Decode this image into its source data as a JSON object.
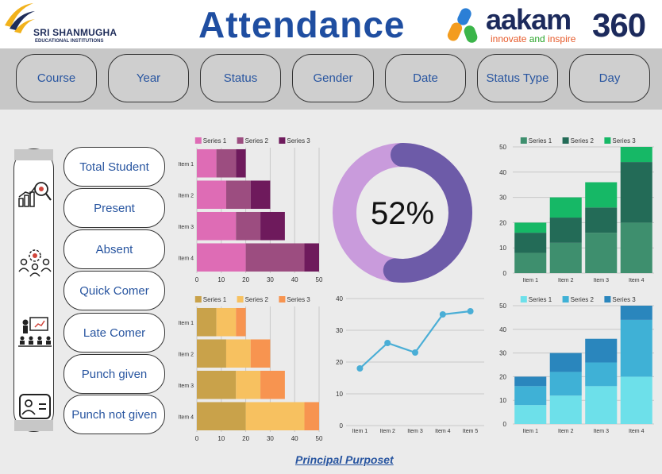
{
  "header": {
    "left_logo": {
      "name": "SRI SHANMUGHA",
      "sub": "EDUCATIONAL INSTITUTIONS"
    },
    "title": "Attendance",
    "right_logo": {
      "brand": "aakam",
      "brand_num": "360",
      "tagline_a": "innovate ",
      "tagline_b": "and",
      "tagline_c": " inspire"
    }
  },
  "filters": [
    "Course",
    "Year",
    "Status",
    "Gender",
    "Date",
    "Status Type",
    "Day"
  ],
  "side_icons": [
    "analytics-icon",
    "team-settings-icon",
    "presentation-icon",
    "id-card-icon"
  ],
  "kpis": [
    "Total Student",
    "Present",
    "Absent",
    "Quick Comer",
    "Late Comer",
    "Punch given",
    "Punch not given"
  ],
  "footer": "Principal Purposet",
  "colors": {
    "title": "#1f4ea1",
    "pill_text": "#2855a0",
    "donut_filled": "#6d5ba8",
    "donut_rest": "#c99bdc"
  },
  "chart_data": [
    {
      "type": "bar",
      "orientation": "horizontal",
      "stacked": true,
      "categories": [
        "Item 1",
        "Item 2",
        "Item 3",
        "Item 4"
      ],
      "series": [
        {
          "name": "Series 1",
          "color": "#de6cb5",
          "values": [
            8,
            12,
            16,
            20
          ]
        },
        {
          "name": "Series 2",
          "color": "#9c4d80",
          "values": [
            8,
            10,
            10,
            24
          ]
        },
        {
          "name": "Series 3",
          "color": "#6e1a5c",
          "values": [
            4,
            8,
            10,
            6
          ]
        }
      ],
      "xlim": [
        0,
        50
      ],
      "xticks": [
        "0",
        "10",
        "20",
        "30",
        "40",
        "50"
      ],
      "legend": "top"
    },
    {
      "type": "pie",
      "donut": true,
      "value": 52,
      "label": "52%"
    },
    {
      "type": "bar",
      "stacked": true,
      "categories": [
        "Item 1",
        "Item 2",
        "Item 3",
        "Item 4"
      ],
      "series": [
        {
          "name": "Series 1",
          "color": "#3e8f6e",
          "values": [
            8,
            12,
            16,
            20
          ]
        },
        {
          "name": "Series 2",
          "color": "#236b57",
          "values": [
            8,
            10,
            10,
            24
          ]
        },
        {
          "name": "Series 3",
          "color": "#16b866",
          "values": [
            4,
            8,
            10,
            6
          ]
        }
      ],
      "ylim": [
        0,
        50
      ],
      "yticks": [
        "0",
        "10",
        "20",
        "30",
        "40",
        "50"
      ],
      "legend": "top"
    },
    {
      "type": "bar",
      "orientation": "horizontal",
      "stacked": true,
      "categories": [
        "Item 1",
        "Item 2",
        "Item 3",
        "Item 4"
      ],
      "series": [
        {
          "name": "Series 1",
          "color": "#c9a24a",
          "values": [
            8,
            12,
            16,
            20
          ]
        },
        {
          "name": "Series 2",
          "color": "#f7c160",
          "values": [
            8,
            10,
            10,
            24
          ]
        },
        {
          "name": "Series 3",
          "color": "#f79450",
          "values": [
            4,
            8,
            10,
            6
          ]
        }
      ],
      "xlim": [
        0,
        50
      ],
      "xticks": [
        "0",
        "10",
        "20",
        "30",
        "40",
        "50"
      ],
      "legend": "top"
    },
    {
      "type": "line",
      "categories": [
        "Item 1",
        "Item 2",
        "Item 3",
        "Item 4",
        "Item 5"
      ],
      "series": [
        {
          "color": "#4aaed6",
          "values": [
            18,
            26,
            23,
            35,
            36
          ]
        }
      ],
      "ylim": [
        0,
        40
      ],
      "yticks": [
        "0",
        "10",
        "20",
        "30",
        "40"
      ]
    },
    {
      "type": "bar",
      "stacked": true,
      "categories": [
        "Item 1",
        "Item 2",
        "Item 3",
        "Item 4"
      ],
      "series": [
        {
          "name": "Series 1",
          "color": "#6de0ea",
          "values": [
            8,
            12,
            16,
            20
          ]
        },
        {
          "name": "Series 2",
          "color": "#3fb1d6",
          "values": [
            8,
            10,
            10,
            24
          ]
        },
        {
          "name": "Series 3",
          "color": "#2a86bd",
          "values": [
            4,
            8,
            10,
            6
          ]
        }
      ],
      "ylim": [
        0,
        50
      ],
      "yticks": [
        "0",
        "10",
        "20",
        "30",
        "40",
        "50"
      ],
      "legend": "top"
    }
  ]
}
